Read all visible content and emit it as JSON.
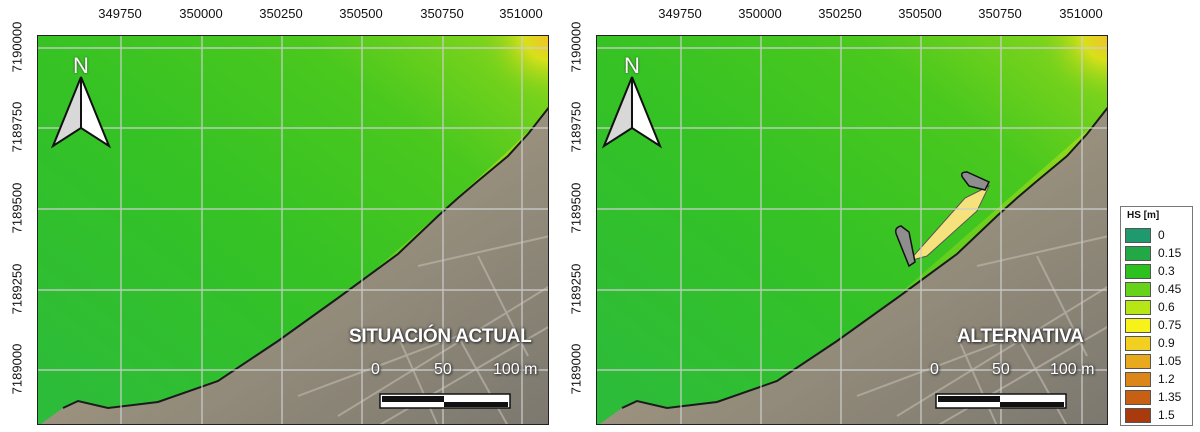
{
  "maps": {
    "x_ticks": [
      "349750",
      "350000",
      "350250",
      "350500",
      "350750",
      "351000"
    ],
    "y_ticks": [
      "7190000",
      "7189750",
      "7189500",
      "7189250",
      "7189000"
    ],
    "north_label": "N",
    "scale_labels": [
      "0",
      "50",
      "100 m"
    ],
    "left_title": "SITUACIÓN ACTUAL",
    "right_title": "ALTERNATIVA"
  },
  "legend": {
    "title": "HS [m]",
    "items": [
      {
        "label": "0",
        "color": "#1f9a6f"
      },
      {
        "label": "0.15",
        "color": "#22a845"
      },
      {
        "label": "0.3",
        "color": "#2cc11f"
      },
      {
        "label": "0.45",
        "color": "#66d21a"
      },
      {
        "label": "0.6",
        "color": "#b6e616"
      },
      {
        "label": "0.75",
        "color": "#f6f21a"
      },
      {
        "label": "0.9",
        "color": "#f2cf20"
      },
      {
        "label": "1.05",
        "color": "#e9a91c"
      },
      {
        "label": "1.2",
        "color": "#dc8518"
      },
      {
        "label": "1.35",
        "color": "#c86014"
      },
      {
        "label": "1.5",
        "color": "#a83a0e"
      }
    ]
  }
}
